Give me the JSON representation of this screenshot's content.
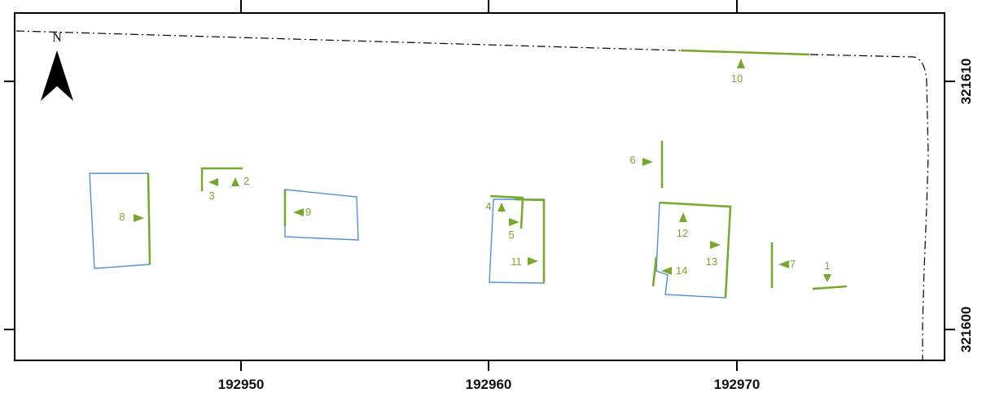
{
  "map": {
    "north_arrow_label": "N",
    "colors": {
      "green": "#76a82e",
      "blue": "#4f91d9",
      "frame": "#000000",
      "boundary": "#000000"
    },
    "x_axis_ticks": [
      "192950",
      "192960",
      "192970"
    ],
    "y_axis_ticks": [
      "321610",
      "321600"
    ],
    "feature_labels": [
      "1",
      "2",
      "3",
      "4",
      "5",
      "6",
      "7",
      "8",
      "9",
      "10",
      "11",
      "12",
      "13",
      "14"
    ],
    "arrow_directions": {
      "1": "down",
      "2": "up",
      "3": "left",
      "4": "up",
      "5": "right",
      "6": "right",
      "7": "left",
      "8": "right",
      "9": "left",
      "10": "up",
      "11": "right",
      "12": "up",
      "13": "right",
      "14": "left"
    }
  }
}
